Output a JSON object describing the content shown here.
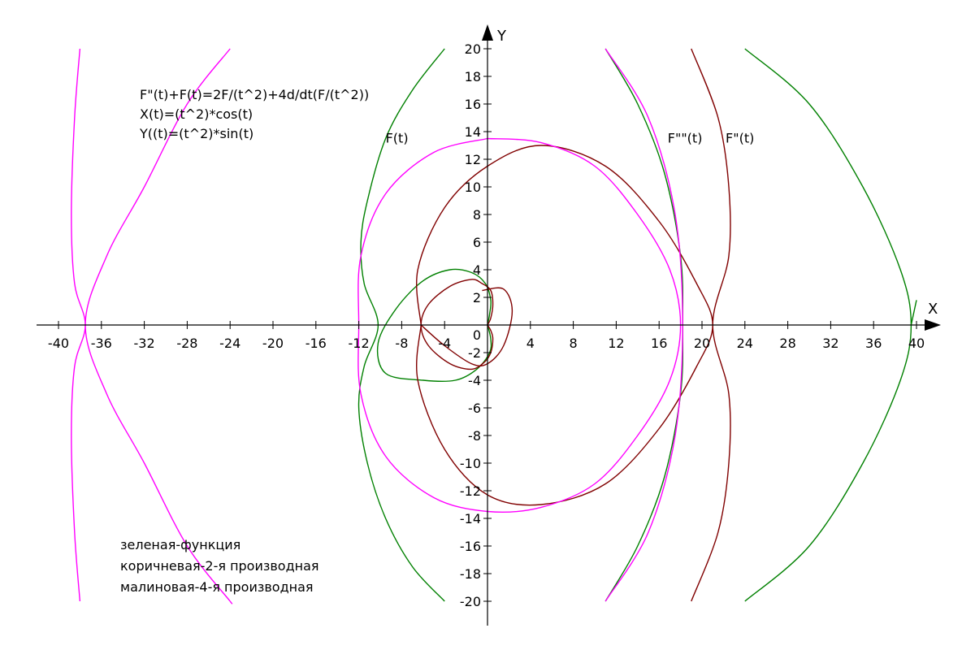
{
  "chart_data": {
    "type": "line",
    "title": "",
    "xlabel": "X",
    "ylabel": "Y",
    "xlim": [
      -41,
      41
    ],
    "ylim": [
      -21,
      21
    ],
    "grid": false,
    "x_ticks": [
      -40,
      -36,
      -32,
      -28,
      -24,
      -20,
      -16,
      -12,
      -8,
      -4,
      0,
      4,
      8,
      12,
      16,
      20,
      24,
      28,
      32,
      36,
      40
    ],
    "y_ticks": [
      -20,
      -18,
      -16,
      -14,
      -12,
      -10,
      -8,
      -6,
      -4,
      -2,
      0,
      2,
      4,
      6,
      8,
      10,
      12,
      14,
      16,
      18,
      20
    ],
    "annotations": [
      "F\"(t)+F(t)=2F/(t^2)+4d/dt(F/(t^2))",
      "X(t)=(t^2)*cos(t)",
      "Y((t)=(t^2)*sin(t)"
    ],
    "legend_text": [
      "зеленая-функция",
      "коричневая-2-я производная",
      "малиновая-4-я производная"
    ],
    "series": [
      {
        "name": "F(t)",
        "color": "#008000",
        "points": [
          [
            0,
            0
          ],
          [
            0.2,
            0.8
          ],
          [
            0.3,
            1.8
          ],
          [
            -0.2,
            3.0
          ],
          [
            -1.5,
            3.8
          ],
          [
            -3.5,
            4.0
          ],
          [
            -6.0,
            3.2
          ],
          [
            -8.5,
            1.2
          ],
          [
            -10.2,
            -1.3
          ],
          [
            -9.5,
            -3.5
          ],
          [
            -6.0,
            -4.0
          ],
          [
            -3.0,
            -4.0
          ],
          [
            -1.0,
            -3.2
          ],
          [
            0.2,
            -2.0
          ],
          [
            0.3,
            -1.0
          ],
          [
            0,
            0
          ]
        ]
      },
      {
        "name": "F(t)",
        "color": "#008000",
        "points": [
          [
            -4,
            20
          ],
          [
            -7,
            17
          ],
          [
            -9.5,
            13.5
          ],
          [
            -11.2,
            9
          ],
          [
            -11.8,
            6
          ],
          [
            -11.5,
            3
          ],
          [
            -10.2,
            0
          ],
          [
            -11.5,
            -3
          ],
          [
            -12,
            -6
          ],
          [
            -11.2,
            -10
          ],
          [
            -9.5,
            -14
          ],
          [
            -7,
            -17.5
          ],
          [
            -4,
            -20
          ]
        ]
      },
      {
        "name": "",
        "color": "#008000",
        "points": [
          [
            24,
            20
          ],
          [
            30,
            16
          ],
          [
            35,
            10
          ],
          [
            38.5,
            4
          ],
          [
            39.5,
            0
          ],
          [
            38.5,
            -4
          ],
          [
            35,
            -10
          ],
          [
            30,
            -16
          ],
          [
            24,
            -20
          ]
        ]
      },
      {
        "name": "",
        "color": "#008000",
        "points": [
          [
            39.5,
            0
          ],
          [
            40,
            1.8
          ]
        ]
      },
      {
        "name": "F\"\"(t)",
        "color": "#008000",
        "points": [
          [
            11,
            20
          ],
          [
            14,
            16
          ],
          [
            16.5,
            11
          ],
          [
            18,
            5
          ],
          [
            18.2,
            0
          ],
          [
            18,
            -5
          ],
          [
            16.5,
            -11
          ],
          [
            14,
            -16
          ],
          [
            11,
            -20
          ]
        ]
      },
      {
        "name": "",
        "color": "#800000",
        "points": [
          [
            0,
            0
          ],
          [
            0.3,
            0.5
          ],
          [
            0.5,
            1.5
          ],
          [
            0.3,
            2.5
          ],
          [
            -0.5,
            3.0
          ],
          [
            -1.5,
            3.3
          ],
          [
            -3.5,
            2.8
          ],
          [
            -5.5,
            1.5
          ],
          [
            -6.2,
            0
          ],
          [
            -5.5,
            -1.5
          ],
          [
            -3.5,
            -2.8
          ],
          [
            -1.5,
            -3.2
          ],
          [
            -0.3,
            -2.7
          ],
          [
            0.3,
            -2.0
          ],
          [
            0.5,
            -1.0
          ],
          [
            0.3,
            -0.4
          ],
          [
            0,
            0
          ]
        ]
      },
      {
        "name": "",
        "color": "#800000",
        "points": [
          [
            -0.5,
            2.5
          ],
          [
            1.5,
            2.6
          ],
          [
            2.3,
            1.0
          ],
          [
            1.5,
            -1.5
          ],
          [
            0,
            -2.8
          ],
          [
            -1.5,
            -2.8
          ],
          [
            -4,
            -1.5
          ],
          [
            -6.2,
            0
          ]
        ]
      },
      {
        "name": "",
        "color": "#800000",
        "points": [
          [
            -6.2,
            0
          ],
          [
            -6.5,
            4
          ],
          [
            -4,
            8.5
          ],
          [
            0,
            11.5
          ],
          [
            5,
            13
          ],
          [
            11,
            11.5
          ],
          [
            16,
            7.5
          ],
          [
            19.5,
            3
          ],
          [
            21,
            0
          ],
          [
            19.5,
            -3
          ],
          [
            16,
            -7.5
          ],
          [
            11,
            -11.5
          ],
          [
            5,
            -13
          ],
          [
            0,
            -12.3
          ],
          [
            -4,
            -9
          ],
          [
            -6.5,
            -4
          ],
          [
            -6.2,
            0
          ]
        ]
      },
      {
        "name": "F\"(t)",
        "color": "#800000",
        "points": [
          [
            19,
            20
          ],
          [
            21.5,
            15
          ],
          [
            22.5,
            10
          ],
          [
            22.5,
            5
          ],
          [
            21,
            0
          ],
          [
            22.5,
            -5
          ],
          [
            22.5,
            -10
          ],
          [
            21.5,
            -15
          ],
          [
            19,
            -20
          ]
        ]
      },
      {
        "name": "",
        "color": "#ff00ff",
        "points": [
          [
            0,
            13.5
          ],
          [
            5,
            13.2
          ],
          [
            10,
            11.5
          ],
          [
            14,
            8
          ],
          [
            17,
            4
          ],
          [
            18,
            0
          ],
          [
            17,
            -4
          ],
          [
            14,
            -8
          ],
          [
            10,
            -11.5
          ],
          [
            5,
            -13.2
          ],
          [
            0,
            -13.5
          ],
          [
            -5,
            -12.5
          ],
          [
            -9.5,
            -9.5
          ],
          [
            -11.8,
            -5
          ],
          [
            -12,
            0
          ],
          [
            -11.8,
            5
          ],
          [
            -9.5,
            9.5
          ],
          [
            -5,
            12.5
          ],
          [
            0,
            13.5
          ]
        ]
      },
      {
        "name": "",
        "color": "#ff00ff",
        "points": [
          [
            -38,
            20
          ],
          [
            -38.5,
            15
          ],
          [
            -38.8,
            8
          ],
          [
            -38.5,
            3
          ],
          [
            -37.5,
            0
          ],
          [
            -38.5,
            -3
          ],
          [
            -38.8,
            -8
          ],
          [
            -38.5,
            -15
          ],
          [
            -38,
            -20
          ]
        ]
      },
      {
        "name": "",
        "color": "#ff00ff",
        "points": [
          [
            -24,
            20
          ],
          [
            -28,
            16
          ],
          [
            -32,
            10
          ],
          [
            -35.5,
            5
          ],
          [
            -37.5,
            0
          ],
          [
            -35.5,
            -5
          ],
          [
            -32,
            -10
          ],
          [
            -28,
            -16
          ],
          [
            -24,
            -20
          ]
        ]
      },
      {
        "name": "",
        "color": "#ff00ff",
        "points": [
          [
            -24,
            -20
          ],
          [
            -23.8,
            -20.2
          ]
        ]
      },
      {
        "name": "",
        "color": "#ff00ff",
        "points": [
          [
            11,
            -20
          ],
          [
            15,
            -15
          ],
          [
            17.5,
            -8
          ],
          [
            18.2,
            0
          ],
          [
            17.5,
            8
          ],
          [
            15,
            15
          ],
          [
            11,
            20
          ]
        ]
      }
    ]
  },
  "labels_on_plot": [
    {
      "text": "F(t)",
      "x": -9.5,
      "y": 13.2
    },
    {
      "text": "F\"\"(t)",
      "x": 16.8,
      "y": 13.2
    },
    {
      "text": "F\"(t)",
      "x": 22.2,
      "y": 13.2
    }
  ]
}
